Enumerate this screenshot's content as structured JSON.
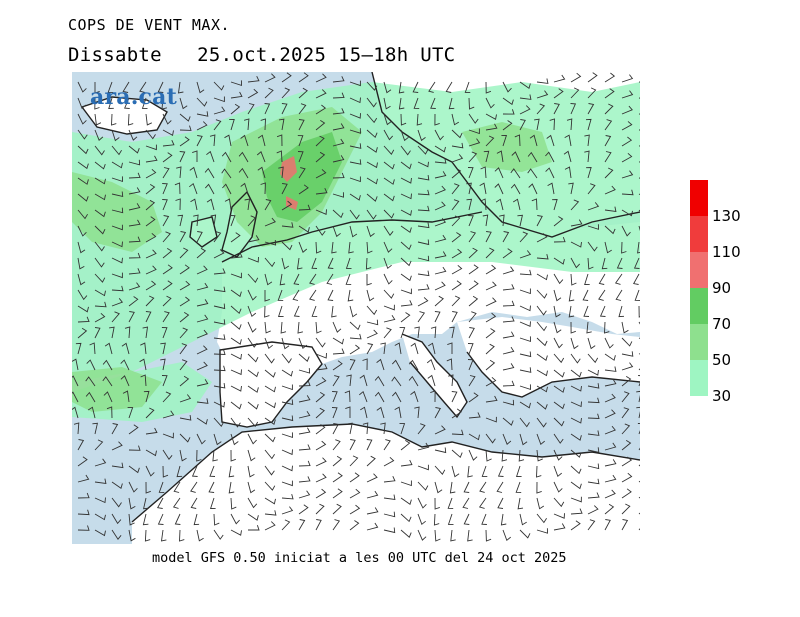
{
  "header": {
    "title": "COPS DE VENT MAX.",
    "day": "Dissabte",
    "date": "25.oct.2025",
    "period": "15–18h UTC"
  },
  "logo": {
    "text": "ara.cat",
    "color": "#2a6db4"
  },
  "footer": {
    "caption": "model GFS 0.50 iniciat a les 00 UTC del 24 oct 2025"
  },
  "legend": {
    "unit_levels": [
      30,
      50,
      70,
      90,
      110,
      130
    ],
    "bands": [
      {
        "from": 30,
        "to": 50,
        "color": "#9ef5c2"
      },
      {
        "from": 50,
        "to": 70,
        "color": "#8ee08e"
      },
      {
        "from": 70,
        "to": 90,
        "color": "#62cc62"
      },
      {
        "from": 90,
        "to": 110,
        "color": "#f07070"
      },
      {
        "from": 110,
        "to": 130,
        "color": "#f03c3c"
      },
      {
        "from": 130,
        "to": 150,
        "color": "#f00000"
      }
    ]
  },
  "map_colors": {
    "sea": "#c6dcea",
    "land": "#ffffff",
    "coast": "#222222",
    "barb": "#333333"
  }
}
